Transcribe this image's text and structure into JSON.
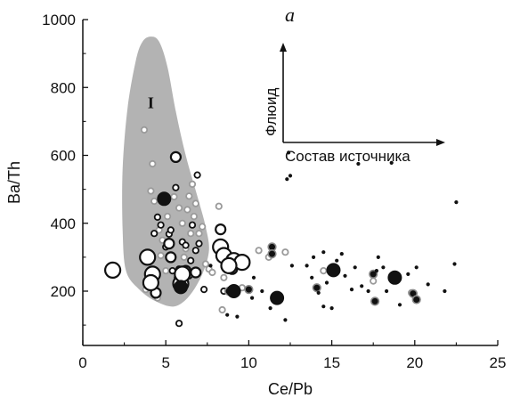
{
  "chart_data": {
    "type": "scatter",
    "panel_label": "a",
    "xlabel": "Ce/Pb",
    "ylabel": "Ba/Th",
    "xlim": [
      0,
      25
    ],
    "ylim": [
      40,
      1000
    ],
    "x_ticks": [
      0,
      5,
      10,
      15,
      20,
      25
    ],
    "y_ticks": [
      200,
      400,
      600,
      800,
      1000
    ],
    "x_tick_labels": [
      "0",
      "5",
      "10",
      "15",
      "20",
      "25"
    ],
    "y_tick_labels": [
      "200",
      "400",
      "600",
      "800",
      "1000"
    ],
    "grid": false,
    "field": {
      "label": "I",
      "color": "#b3b3b3",
      "outline": [
        [
          4.1,
          950
        ],
        [
          4.6,
          935
        ],
        [
          5.1,
          860
        ],
        [
          5.6,
          730
        ],
        [
          6.2,
          600
        ],
        [
          6.9,
          480
        ],
        [
          7.4,
          390
        ],
        [
          7.6,
          320
        ],
        [
          7.2,
          250
        ],
        [
          6.4,
          185
        ],
        [
          5.5,
          155
        ],
        [
          4.4,
          170
        ],
        [
          3.4,
          205
        ],
        [
          2.6,
          260
        ],
        [
          2.4,
          380
        ],
        [
          2.4,
          560
        ],
        [
          2.7,
          740
        ],
        [
          3.2,
          880
        ],
        [
          3.6,
          935
        ]
      ],
      "label_position": [
        4.1,
        758
      ]
    },
    "inset": {
      "vertical_label": "Флюид",
      "horizontal_label": "Состав источника"
    },
    "series": [
      {
        "marker": "large-open-circle",
        "color": "#111111",
        "points": [
          [
            1.8,
            262
          ],
          [
            3.9,
            300
          ],
          [
            4.2,
            250
          ],
          [
            4.1,
            225
          ],
          [
            5.9,
            222
          ],
          [
            6.0,
            250
          ],
          [
            8.3,
            330
          ],
          [
            8.5,
            305
          ],
          [
            9.1,
            290
          ],
          [
            9.6,
            285
          ],
          [
            8.8,
            275
          ]
        ]
      },
      {
        "marker": "medium-open-circle",
        "color": "#111111",
        "points": [
          [
            4.4,
            195
          ],
          [
            5.3,
            300
          ],
          [
            5.6,
            595
          ],
          [
            6.8,
            255
          ],
          [
            8.3,
            382
          ],
          [
            9.0,
            265
          ],
          [
            6.2,
            260
          ],
          [
            5.2,
            340
          ]
        ]
      },
      {
        "marker": "small-open-circle",
        "color": "#111111",
        "points": [
          [
            4.3,
            370
          ],
          [
            4.5,
            418
          ],
          [
            4.7,
            395
          ],
          [
            5.0,
            330
          ],
          [
            5.2,
            368
          ],
          [
            5.3,
            380
          ],
          [
            5.4,
            260
          ],
          [
            5.6,
            505
          ],
          [
            5.7,
            240
          ],
          [
            5.8,
            265
          ],
          [
            6.0,
            345
          ],
          [
            6.2,
            335
          ],
          [
            6.4,
            245
          ],
          [
            6.5,
            290
          ],
          [
            6.6,
            395
          ],
          [
            6.8,
            320
          ],
          [
            6.9,
            542
          ],
          [
            7.0,
            340
          ],
          [
            7.3,
            205
          ],
          [
            5.8,
            105
          ],
          [
            8.5,
            200
          ]
        ]
      },
      {
        "marker": "small-gray-open-circle",
        "color": "#9a9a9a",
        "points": [
          [
            4.2,
            575
          ],
          [
            4.1,
            495
          ],
          [
            4.3,
            465
          ],
          [
            4.6,
            380
          ],
          [
            4.7,
            305
          ],
          [
            4.8,
            350
          ],
          [
            5.0,
            260
          ],
          [
            5.1,
            420
          ],
          [
            5.4,
            300
          ],
          [
            5.5,
            478
          ],
          [
            5.8,
            445
          ],
          [
            6.0,
            400
          ],
          [
            6.1,
            300
          ],
          [
            6.2,
            325
          ],
          [
            6.3,
            440
          ],
          [
            6.4,
            480
          ],
          [
            6.5,
            370
          ],
          [
            6.6,
            515
          ],
          [
            6.7,
            420
          ],
          [
            6.8,
            458
          ],
          [
            7.0,
            370
          ],
          [
            7.2,
            390
          ],
          [
            7.4,
            280
          ],
          [
            7.6,
            265
          ],
          [
            7.8,
            255
          ],
          [
            8.2,
            450
          ],
          [
            8.5,
            240
          ],
          [
            8.4,
            145
          ],
          [
            4.5,
            180
          ],
          [
            3.8,
            205
          ],
          [
            3.7,
            675
          ],
          [
            9.6,
            210
          ],
          [
            10.6,
            320
          ],
          [
            11.2,
            300
          ],
          [
            12.2,
            315
          ],
          [
            14.5,
            260
          ],
          [
            15.3,
            260
          ],
          [
            17.5,
            230
          ],
          [
            19.8,
            195
          ],
          [
            17.6,
            170
          ]
        ]
      },
      {
        "marker": "large-filled-circle",
        "color": "#111111",
        "points": [
          [
            4.9,
            472
          ],
          [
            5.9,
            212
          ],
          [
            9.1,
            200
          ],
          [
            11.7,
            180
          ],
          [
            15.1,
            262
          ],
          [
            18.8,
            240
          ]
        ]
      },
      {
        "marker": "medium-filled-circle",
        "color": "#111111",
        "points": [
          [
            8.8,
            200
          ],
          [
            10.0,
            205
          ],
          [
            11.4,
            330
          ],
          [
            11.4,
            310
          ],
          [
            17.5,
            250
          ],
          [
            17.6,
            170
          ],
          [
            19.9,
            193
          ],
          [
            20.1,
            175
          ],
          [
            14.1,
            210
          ]
        ]
      },
      {
        "marker": "small-filled-dot",
        "color": "#111111",
        "points": [
          [
            10.2,
            180
          ],
          [
            10.3,
            240
          ],
          [
            10.8,
            200
          ],
          [
            11.3,
            150
          ],
          [
            12.2,
            115
          ],
          [
            12.4,
            608
          ],
          [
            12.3,
            530
          ],
          [
            12.5,
            540
          ],
          [
            12.6,
            275
          ],
          [
            13.5,
            275
          ],
          [
            13.8,
            240
          ],
          [
            13.9,
            300
          ],
          [
            14.2,
            195
          ],
          [
            14.5,
            315
          ],
          [
            14.7,
            225
          ],
          [
            14.5,
            155
          ],
          [
            15.0,
            150
          ],
          [
            15.3,
            290
          ],
          [
            15.6,
            310
          ],
          [
            15.8,
            245
          ],
          [
            16.2,
            205
          ],
          [
            16.4,
            270
          ],
          [
            16.6,
            575
          ],
          [
            16.8,
            215
          ],
          [
            17.2,
            200
          ],
          [
            17.7,
            260
          ],
          [
            17.8,
            300
          ],
          [
            18.1,
            270
          ],
          [
            18.3,
            200
          ],
          [
            18.6,
            578
          ],
          [
            19.1,
            160
          ],
          [
            19.6,
            250
          ],
          [
            20.1,
            270
          ],
          [
            20.8,
            220
          ],
          [
            21.8,
            200
          ],
          [
            22.4,
            280
          ],
          [
            22.5,
            462
          ],
          [
            8.7,
            130
          ],
          [
            9.3,
            125
          ],
          [
            7.7,
            275
          ]
        ]
      }
    ]
  }
}
